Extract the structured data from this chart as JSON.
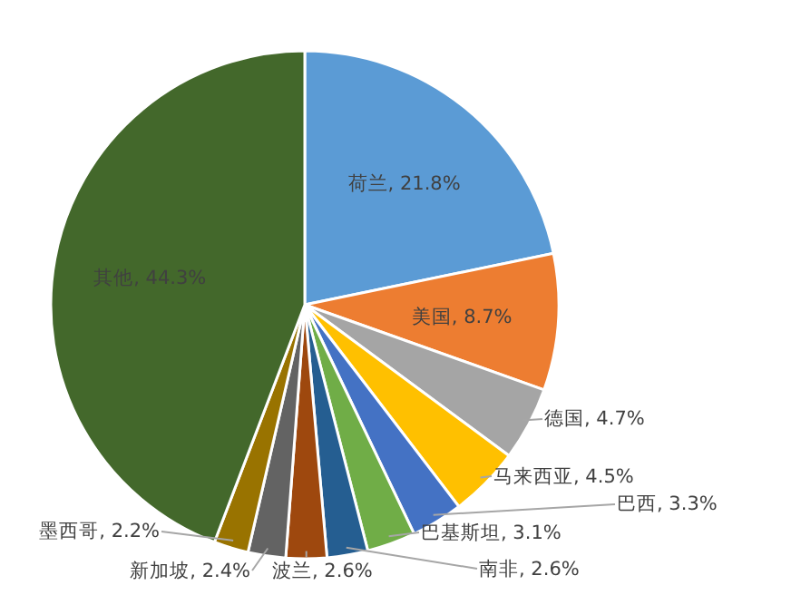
{
  "chart_data": {
    "type": "pie",
    "categories": [
      "荷兰",
      "美国",
      "德国",
      "马来西亚",
      "巴西",
      "巴基斯坦",
      "南非",
      "波兰",
      "新加坡",
      "墨西哥",
      "其他"
    ],
    "values": [
      21.8,
      8.7,
      4.7,
      4.5,
      3.3,
      3.1,
      2.6,
      2.6,
      2.4,
      2.2,
      44.3
    ],
    "value_labels": [
      ", 21.8%",
      ", 8.7%",
      ", 4.7%",
      ", 4.5%",
      ", 3.3%",
      ", 3.1%",
      ", 2.6%",
      ", 2.6%",
      ", 2.4%",
      ", 2.2%",
      ", 44.3%"
    ],
    "colors": [
      "#5b9bd5",
      "#ed7d31",
      "#a5a5a5",
      "#ffc000",
      "#4472c4",
      "#70ad47",
      "#255e91",
      "#9e480e",
      "#636363",
      "#997300",
      "#43682b"
    ]
  }
}
